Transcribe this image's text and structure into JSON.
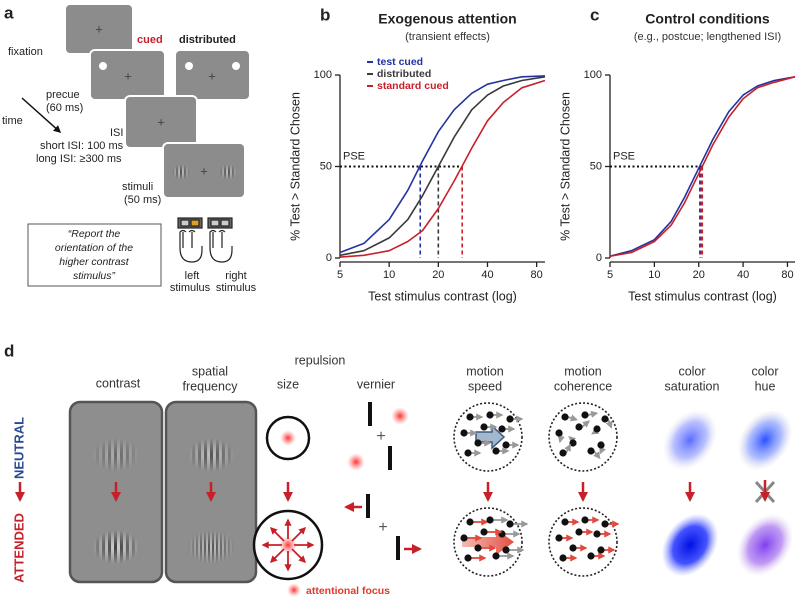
{
  "panel_a": {
    "letter": "a",
    "fixation": "fixation",
    "cued": "cued",
    "distributed": "distributed",
    "precue": [
      "precue",
      "(60 ms)"
    ],
    "time": "time",
    "isi": [
      "ISI",
      "short ISI: 100 ms",
      "long ISI: ≥300 ms"
    ],
    "stimuli": [
      "stimuli",
      "(50 ms)"
    ],
    "instruction": [
      "“Report the",
      "orientation of the",
      "higher contrast",
      "stimulus”"
    ],
    "left": [
      "left",
      "stimulus"
    ],
    "right": [
      "right",
      "stimulus"
    ]
  },
  "chart_data": [
    {
      "type": "line",
      "letter": "b",
      "title": "Exogenous attention",
      "subtitle": "(transient effects)",
      "xlabel": "Test stimulus contrast (log)",
      "ylabel": "% Test > Standard Chosen",
      "log_x": true,
      "xlim": [
        5,
        90
      ],
      "xticks": [
        5,
        10,
        20,
        40,
        80
      ],
      "ylim": [
        0,
        100
      ],
      "yticks": [
        0,
        50,
        100
      ],
      "annotation": "PSE",
      "pse_level": 50,
      "legend": true,
      "x": [
        5,
        7,
        10,
        13,
        16,
        20,
        25,
        32,
        40,
        50,
        65,
        90
      ],
      "series": [
        {
          "name": "test cued",
          "color": "#2233a0",
          "values": [
            3,
            8,
            21,
            37,
            53,
            69,
            81,
            90,
            95,
            97,
            99,
            99.5
          ],
          "pse": 15.5
        },
        {
          "name": "distributed",
          "color": "#3a3a3a",
          "values": [
            1.5,
            4,
            11,
            21,
            34,
            50,
            66,
            81,
            89,
            94,
            97,
            99
          ],
          "pse": 20
        },
        {
          "name": "standard cued",
          "color": "#c8202a",
          "values": [
            0.5,
            1.5,
            4,
            9,
            15,
            27,
            42,
            60,
            75,
            85,
            93,
            97
          ],
          "pse": 28
        }
      ]
    },
    {
      "type": "line",
      "letter": "c",
      "title": "Control conditions",
      "subtitle": "(e.g., postcue; lengthened ISI)",
      "xlabel": "Test stimulus contrast (log)",
      "ylabel": "% Test > Standard Chosen",
      "log_x": true,
      "xlim": [
        5,
        90
      ],
      "xticks": [
        5,
        10,
        20,
        40,
        80
      ],
      "ylim": [
        0,
        100
      ],
      "yticks": [
        0,
        50,
        100
      ],
      "annotation": "PSE",
      "pse_level": 50,
      "legend": false,
      "x": [
        5,
        7,
        10,
        13,
        16,
        20,
        25,
        32,
        40,
        50,
        65,
        90
      ],
      "series": [
        {
          "color": "#2233a0",
          "values": [
            1,
            4,
            10,
            20,
            33,
            49,
            65,
            80,
            89,
            94,
            97,
            99
          ],
          "pse": 20.5
        },
        {
          "color": "#c8202a",
          "values": [
            1,
            3,
            9,
            18,
            30,
            46,
            62,
            77,
            87,
            93,
            96,
            99
          ],
          "pse": 21
        }
      ]
    }
  ],
  "panel_d": {
    "letter": "d",
    "neutral": "NEUTRAL",
    "attended": "ATTENDED",
    "contrast": "contrast",
    "spatial_frequency": [
      "spatial",
      "frequency"
    ],
    "repulsion": "repulsion",
    "size": "size",
    "vernier": "vernier",
    "motion_speed": [
      "motion",
      "speed"
    ],
    "motion_coherence": [
      "motion",
      "coherence"
    ],
    "color_saturation": [
      "color",
      "saturation"
    ],
    "color_hue": [
      "color",
      "hue"
    ],
    "attentional_focus": "attentional focus"
  }
}
